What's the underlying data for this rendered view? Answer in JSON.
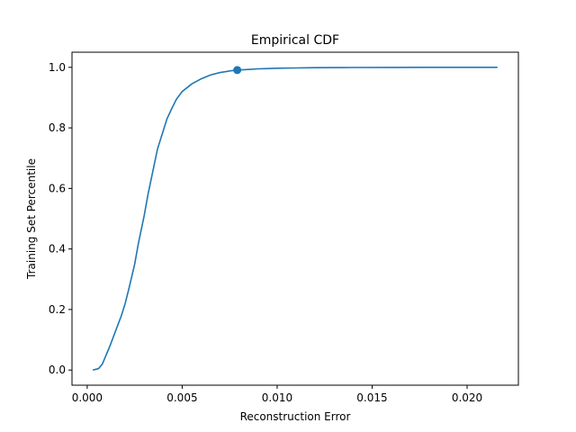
{
  "chart_data": {
    "type": "line",
    "title": "Empirical CDF",
    "xlabel": "Reconstruction Error",
    "ylabel": "Training Set Percentile",
    "xlim": [
      -0.0008,
      0.0227
    ],
    "ylim": [
      -0.05,
      1.05
    ],
    "xticks": [
      {
        "value": 0.0,
        "label": "0.000"
      },
      {
        "value": 0.005,
        "label": "0.005"
      },
      {
        "value": 0.01,
        "label": "0.010"
      },
      {
        "value": 0.015,
        "label": "0.015"
      },
      {
        "value": 0.02,
        "label": "0.020"
      }
    ],
    "yticks": [
      {
        "value": 0.0,
        "label": "0.0"
      },
      {
        "value": 0.2,
        "label": "0.2"
      },
      {
        "value": 0.4,
        "label": "0.4"
      },
      {
        "value": 0.6,
        "label": "0.6"
      },
      {
        "value": 0.8,
        "label": "0.8"
      },
      {
        "value": 1.0,
        "label": "1.0"
      }
    ],
    "grid": false,
    "line_color": "#1f77b4",
    "series": [
      {
        "x": [
          0.0003,
          0.0006,
          0.0008,
          0.001,
          0.0012,
          0.0015,
          0.0018,
          0.002,
          0.0022,
          0.0025,
          0.0027,
          0.003,
          0.0032,
          0.0035,
          0.0037,
          0.004,
          0.0042,
          0.0045,
          0.0047,
          0.005,
          0.0055,
          0.006,
          0.0065,
          0.007,
          0.0075,
          0.0079,
          0.0085,
          0.009,
          0.0095,
          0.01,
          0.011,
          0.012,
          0.014,
          0.016,
          0.018,
          0.02,
          0.0216
        ],
        "y": [
          0.0,
          0.005,
          0.02,
          0.05,
          0.08,
          0.13,
          0.18,
          0.22,
          0.27,
          0.35,
          0.42,
          0.51,
          0.58,
          0.67,
          0.73,
          0.79,
          0.83,
          0.87,
          0.895,
          0.92,
          0.945,
          0.962,
          0.975,
          0.983,
          0.988,
          0.991,
          0.993,
          0.995,
          0.996,
          0.997,
          0.998,
          0.999,
          0.9995,
          0.9998,
          0.9999,
          1.0,
          1.0
        ]
      }
    ],
    "marker": {
      "x": 0.0079,
      "y": 0.991
    }
  }
}
